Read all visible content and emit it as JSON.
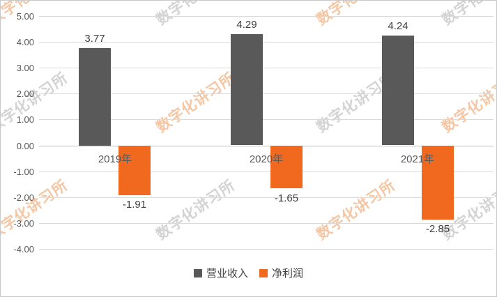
{
  "chart_data": {
    "type": "bar",
    "categories": [
      "2019年",
      "2020年",
      "2021年"
    ],
    "series": [
      {
        "name": "营业收入",
        "color": "#595959",
        "values": [
          3.77,
          4.29,
          4.24
        ],
        "labels": [
          "3.77",
          "4.29",
          "4.24"
        ]
      },
      {
        "name": "净利润",
        "color": "#F0691E",
        "values": [
          -1.91,
          -1.65,
          -2.85
        ],
        "labels": [
          "-1.91",
          "-1.65",
          "-2.85"
        ]
      }
    ],
    "y_axis": {
      "min": -4,
      "max": 5,
      "step": 1,
      "tick_labels": [
        "5.00",
        "4.00",
        "3.00",
        "2.00",
        "1.00",
        "0.00",
        "-1.00",
        "-2.00",
        "-3.00",
        "-4.00"
      ]
    },
    "grid": true,
    "legend_position": "bottom",
    "title": "",
    "xlabel": "",
    "ylabel": ""
  },
  "watermark": {
    "text": "数字化讲习所",
    "colors": [
      "#cccccc",
      "#f4bd95"
    ]
  }
}
